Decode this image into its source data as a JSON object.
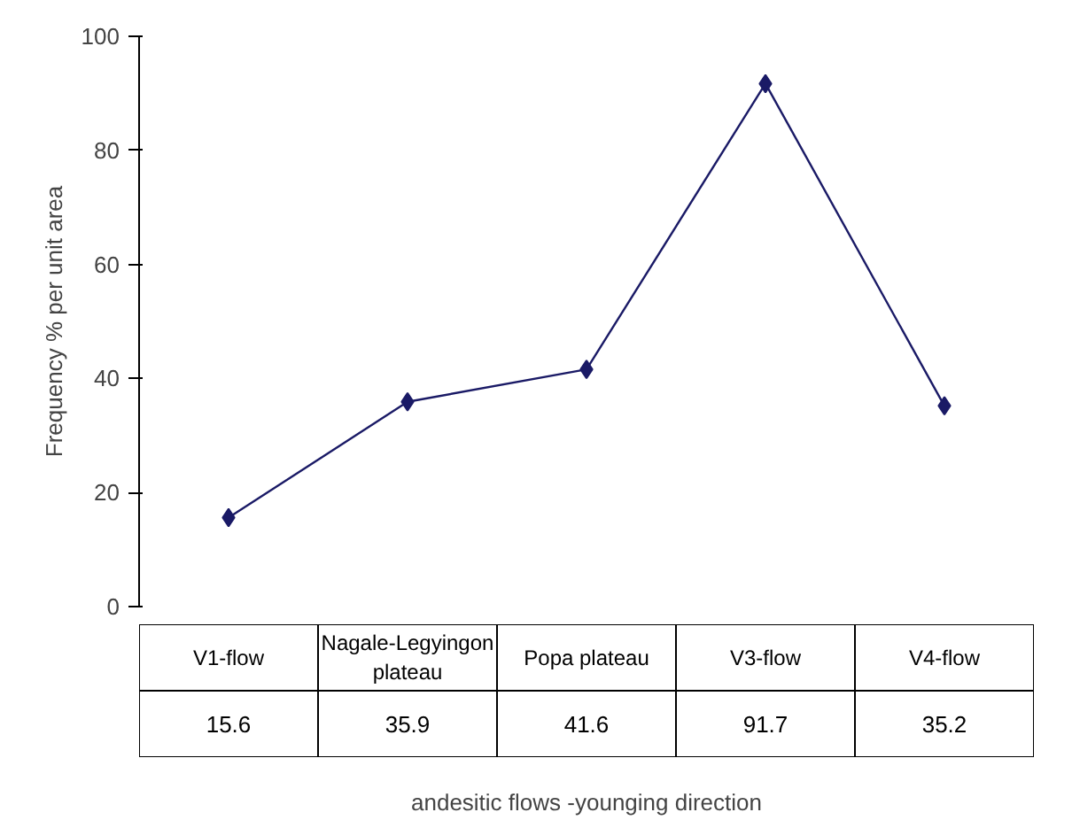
{
  "chart_data": {
    "type": "line",
    "ylabel": "Frequency % per unit area",
    "xlabel": "andesitic flows -younging direction",
    "categories": [
      "V1-flow",
      "Nagale-Legyingon plateau",
      "Popa plateau",
      "V3-flow",
      "V4-flow"
    ],
    "series": [
      {
        "color": "#1a1a66",
        "values": [
          15.6,
          35.9,
          41.6,
          91.7,
          35.2
        ]
      }
    ],
    "ylim": [
      0,
      100
    ],
    "yticks": [
      0,
      20,
      40,
      60,
      80,
      100
    ],
    "marker": "diamond",
    "line_style": "solid",
    "grid": false,
    "data_labels": true
  }
}
